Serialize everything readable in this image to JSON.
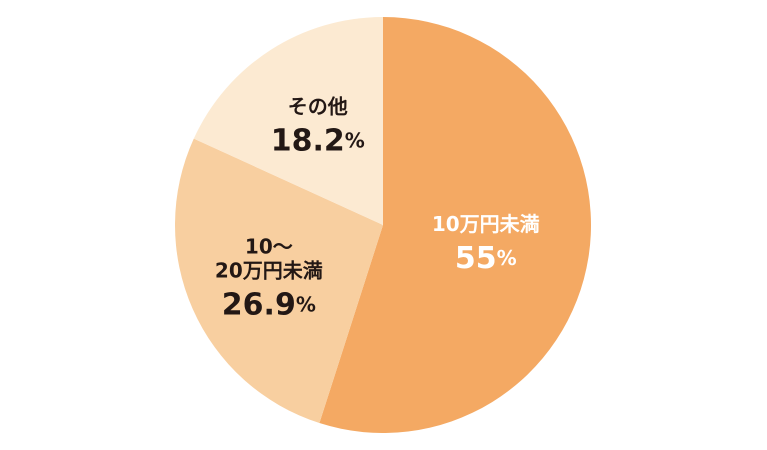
{
  "chart_data": {
    "type": "pie",
    "categories": [
      "10万円未満",
      "10～\n20万円未満",
      "その他"
    ],
    "values": [
      55,
      26.9,
      18.2
    ],
    "value_labels": [
      "55%",
      "26.9%",
      "18.2%"
    ],
    "colors": [
      "#f4a963",
      "#f8cfa0",
      "#fcead2"
    ],
    "label_colors": [
      "#ffffff",
      "#231815",
      "#231815"
    ]
  }
}
